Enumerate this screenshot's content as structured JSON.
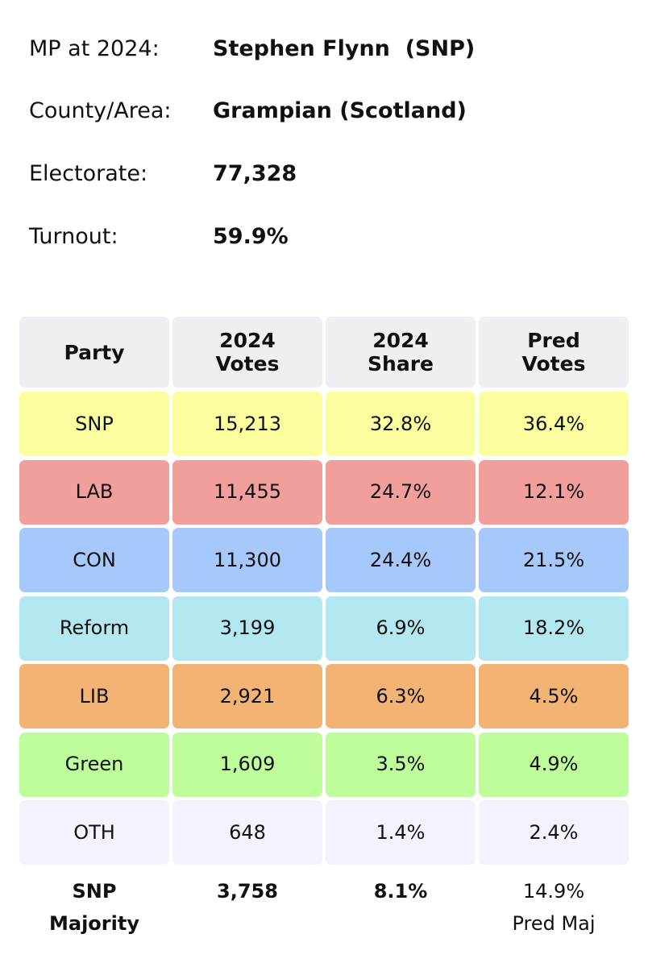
{
  "info": {
    "mp_label": "MP at 2024:",
    "mp_value": "Stephen Flynn  (SNP)",
    "county_label": "County/Area:",
    "county_value": "Grampian (Scotland)",
    "electorate_label": "Electorate:",
    "electorate_value": "77,328",
    "turnout_label": "Turnout:",
    "turnout_value": "59.9%"
  },
  "table": {
    "headers": [
      {
        "line1": "Party",
        "line2": ""
      },
      {
        "line1": "2024",
        "line2": "Votes"
      },
      {
        "line1": "2024",
        "line2": "Share"
      },
      {
        "line1": "Pred",
        "line2": "Votes"
      }
    ],
    "rows": [
      {
        "party": "SNP",
        "votes": "15,213",
        "share": "32.8%",
        "pred": "36.4%",
        "color": "#fbfd9f"
      },
      {
        "party": "LAB",
        "votes": "11,455",
        "share": "24.7%",
        "pred": "12.1%",
        "color": "#f09f9c"
      },
      {
        "party": "CON",
        "votes": "11,300",
        "share": "24.4%",
        "pred": "21.5%",
        "color": "#a7c8fa"
      },
      {
        "party": "Reform",
        "votes": "3,199",
        "share": "6.9%",
        "pred": "18.2%",
        "color": "#b3e8f1"
      },
      {
        "party": "LIB",
        "votes": "2,921",
        "share": "6.3%",
        "pred": "4.5%",
        "color": "#f2b374"
      },
      {
        "party": "Green",
        "votes": "1,609",
        "share": "3.5%",
        "pred": "4.9%",
        "color": "#bdfd9b"
      },
      {
        "party": "OTH",
        "votes": "648",
        "share": "1.4%",
        "pred": "2.4%",
        "color": "#f4f2fd"
      }
    ],
    "footer": {
      "party_line1": "SNP",
      "party_line2": "Majority",
      "votes": "3,758",
      "share": "8.1%",
      "pred_line1": "14.9%",
      "pred_line2": "Pred Maj"
    }
  }
}
